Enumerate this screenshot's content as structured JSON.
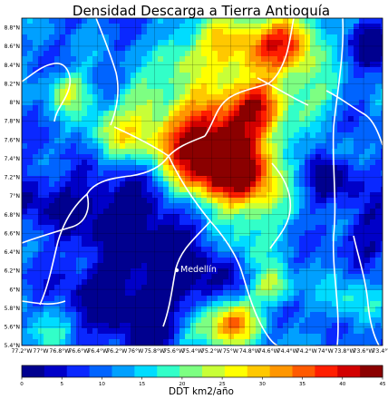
{
  "chart_data": {
    "type": "heatmap",
    "title": "Densidad Descarga a Tierra Antioquía",
    "x_ticks": [
      "77.2°W",
      "77°W",
      "76.8°W",
      "76.6°W",
      "76.4°W",
      "76.2°W",
      "76°W",
      "75.8°W",
      "75.6°W",
      "75.4°W",
      "75.2°W",
      "75°W",
      "74.8°W",
      "74.6°W",
      "74.4°W",
      "74.2°W",
      "74°W",
      "73.8°W",
      "73.6°W",
      "73.4°W"
    ],
    "y_ticks": [
      "8.8°N",
      "8.6°N",
      "8.4°N",
      "8.2°N",
      "8°N",
      "7.8°N",
      "7.6°N",
      "7.4°N",
      "7.2°N",
      "7°N",
      "6.8°N",
      "6.6°N",
      "6.4°N",
      "6.2°N",
      "6°N",
      "5.8°N",
      "5.6°N",
      "5.4°N"
    ],
    "xlim": [
      -77.2,
      -73.4
    ],
    "ylim": [
      5.4,
      8.9
    ],
    "city_label": "Medellín",
    "colorbar": {
      "label": "DDT km2/año",
      "ticks": [
        "0",
        "5",
        "10",
        "15",
        "20",
        "25",
        "30",
        "35",
        "40",
        "45"
      ],
      "min": 0,
      "max": 45
    },
    "colors": [
      "#00008f",
      "#0000c8",
      "#0a28ff",
      "#0064ff",
      "#00a0ff",
      "#00dcff",
      "#32ffc8",
      "#7dff82",
      "#c8ff37",
      "#ffff00",
      "#ffc800",
      "#ff9600",
      "#ff5a00",
      "#ff1e00",
      "#d20000",
      "#8b0000"
    ]
  }
}
